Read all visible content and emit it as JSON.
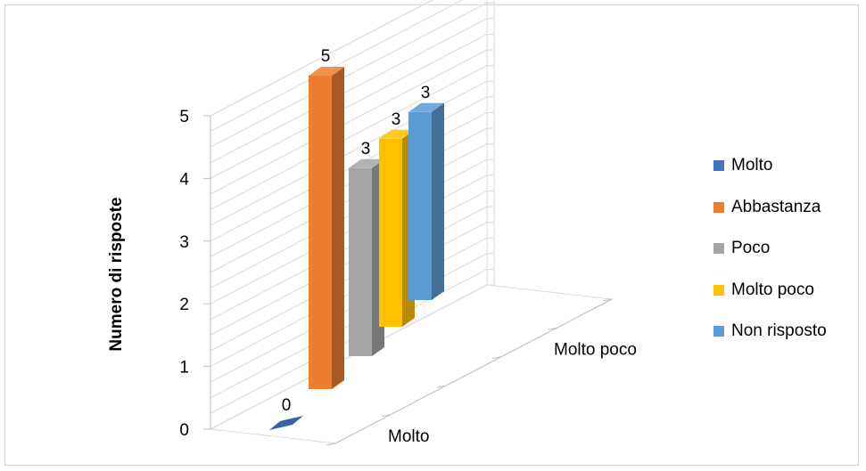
{
  "chart_data": {
    "type": "bar",
    "categories": [
      "Molto",
      "Abbastanza",
      "Poco",
      "Molto poco",
      "Non risposto"
    ],
    "x_tick_labels": [
      "Molto",
      "Molto poco"
    ],
    "values": [
      0,
      5,
      3,
      3,
      3
    ],
    "data_labels": [
      "0",
      "5",
      "3",
      "3",
      "3"
    ],
    "ylabel": "Numero di risposte",
    "ylim": [
      0,
      5
    ],
    "yticks": [
      "0",
      "1",
      "2",
      "3",
      "4",
      "5"
    ],
    "grid": true,
    "legend_position": "right",
    "colors": [
      "#4472C4",
      "#ED7D31",
      "#A5A5A5",
      "#FFC000",
      "#5B9BD5"
    ],
    "legend": [
      {
        "label": "Molto",
        "color": "#4472C4"
      },
      {
        "label": "Abbastanza",
        "color": "#ED7D31"
      },
      {
        "label": "Poco",
        "color": "#A5A5A5"
      },
      {
        "label": "Molto poco",
        "color": "#FFC000"
      },
      {
        "label": "Non risposto",
        "color": "#5B9BD5"
      }
    ]
  }
}
